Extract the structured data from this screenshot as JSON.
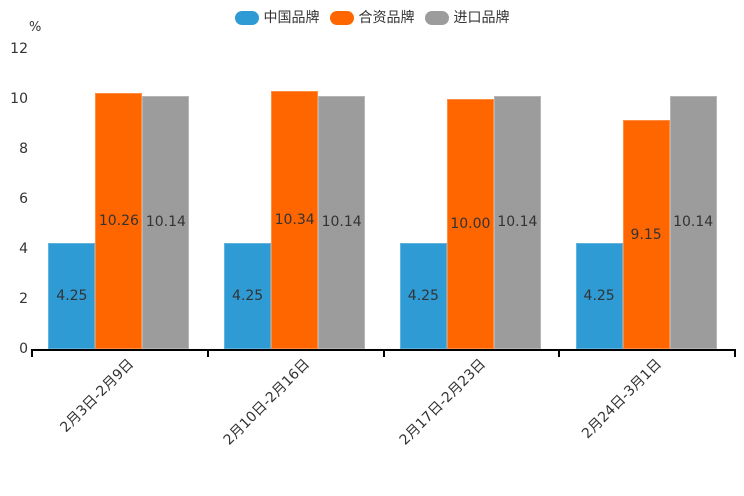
{
  "chart_data": {
    "type": "bar",
    "title": "",
    "unit_label": "%",
    "legend_position": "top",
    "grid": false,
    "value_label_position": "inside-center",
    "ylim": [
      0,
      12
    ],
    "y_ticks": [
      0,
      2,
      4,
      6,
      8,
      10,
      12
    ],
    "categories": [
      "2月3日-2月9日",
      "2月10日-2月16日",
      "2月17日-2月23日",
      "2月24日-3月1日"
    ],
    "series": [
      {
        "id": "china-brand",
        "name": "中国品牌",
        "color": "#2E9BD5",
        "values": [
          4.25,
          4.25,
          4.25,
          4.25
        ],
        "value_labels": [
          "4.25",
          "4.25",
          "4.25",
          "4.25"
        ]
      },
      {
        "id": "joint-venture-brand",
        "name": "合资品牌",
        "color": "#FF6600",
        "values": [
          10.26,
          10.34,
          10.0,
          9.15
        ],
        "value_labels": [
          "10.26",
          "10.34",
          "10.00",
          "9.15"
        ]
      },
      {
        "id": "import-brand",
        "name": "进口品牌",
        "color": "#9C9C9C",
        "values": [
          10.14,
          10.14,
          10.14,
          10.14
        ],
        "value_labels": [
          "10.14",
          "10.14",
          "10.14",
          "10.14"
        ]
      }
    ],
    "colors": {
      "text": "#333333",
      "axis": "#000000"
    }
  }
}
